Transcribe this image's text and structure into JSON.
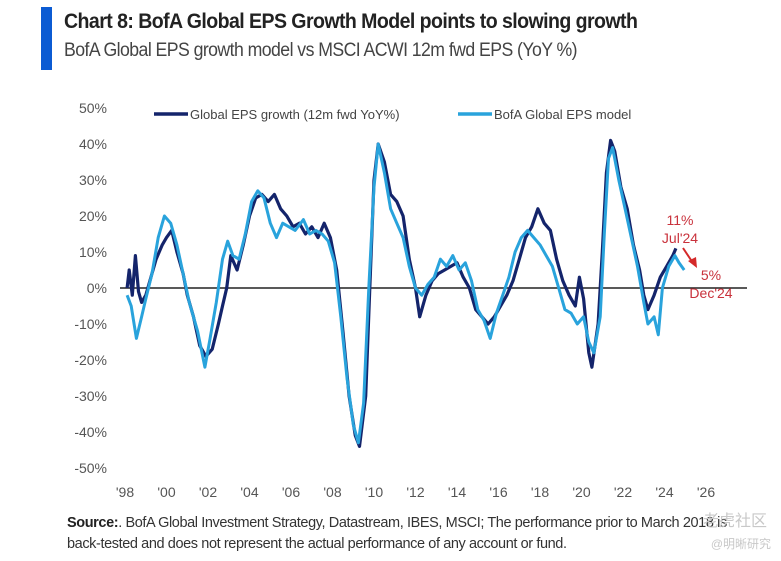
{
  "header": {
    "title": "Chart 8: BofA Global EPS Growth Model points to slowing growth",
    "subtitle": "BofA Global EPS growth model vs MSCI ACWI 12m fwd EPS (YoY %)"
  },
  "colors": {
    "accent": "#0b5bd3",
    "series_actual": "#14246b",
    "series_model": "#29a3dc",
    "annotation": "#c9323c",
    "zero_line": "#222222"
  },
  "footer": {
    "source_label": "Source:",
    "source_text": ". BofA Global Investment Strategy, Datastream, IBES, MSCI; The performance prior to March 2018 is back-tested and does not represent the actual performance of any account or fund.",
    "watermark_1": "老虎社区",
    "watermark_2": "@明晰研究"
  },
  "chart_data": {
    "type": "line",
    "title": "Chart 8: BofA Global EPS Growth Model points to slowing growth",
    "subtitle": "BofA Global EPS growth model vs MSCI ACWI 12m fwd EPS (YoY %)",
    "xlabel": "",
    "ylabel": "",
    "xlim": [
      1997.6,
      2026.6
    ],
    "ylim": [
      -50,
      50
    ],
    "x_ticks": [
      1998,
      2000,
      2002,
      2004,
      2006,
      2008,
      2010,
      2012,
      2014,
      2016,
      2018,
      2020,
      2022,
      2024,
      2026
    ],
    "x_tick_labels": [
      "'98",
      "'00",
      "'02",
      "'04",
      "'06",
      "'08",
      "'10",
      "'12",
      "'14",
      "'16",
      "'18",
      "'20",
      "'22",
      "'24",
      "'26"
    ],
    "y_ticks": [
      50,
      40,
      30,
      20,
      10,
      0,
      -10,
      -20,
      -30,
      -40,
      -50
    ],
    "y_tick_labels": [
      "50%",
      "40%",
      "30%",
      "20%",
      "10%",
      "0%",
      "-10%",
      "-20%",
      "-30%",
      "-40%",
      "-50%"
    ],
    "grid": false,
    "zero_line": true,
    "legend": {
      "placement": "top",
      "entries": [
        "Global EPS growth (12m fwd YoY%)",
        "BofA Global EPS model"
      ]
    },
    "series": [
      {
        "name": "Global EPS growth (12m fwd YoY%)",
        "color": "#14246b",
        "points": [
          [
            1998.1,
            0
          ],
          [
            1998.2,
            5
          ],
          [
            1998.35,
            -2
          ],
          [
            1998.5,
            9
          ],
          [
            1998.65,
            -1
          ],
          [
            1998.8,
            -4
          ],
          [
            1999.0,
            -2
          ],
          [
            1999.2,
            2
          ],
          [
            1999.5,
            8
          ],
          [
            1999.8,
            12
          ],
          [
            2000.0,
            14
          ],
          [
            2000.25,
            16
          ],
          [
            2000.5,
            10
          ],
          [
            2000.8,
            4
          ],
          [
            2001.0,
            -2
          ],
          [
            2001.3,
            -8
          ],
          [
            2001.6,
            -16
          ],
          [
            2001.9,
            -19
          ],
          [
            2002.2,
            -17
          ],
          [
            2002.5,
            -10
          ],
          [
            2002.7,
            -5
          ],
          [
            2002.9,
            0
          ],
          [
            2003.1,
            9
          ],
          [
            2003.4,
            5
          ],
          [
            2003.7,
            12
          ],
          [
            2004.0,
            20
          ],
          [
            2004.3,
            25
          ],
          [
            2004.6,
            26
          ],
          [
            2004.9,
            24
          ],
          [
            2005.2,
            26
          ],
          [
            2005.5,
            22
          ],
          [
            2005.8,
            20
          ],
          [
            2006.1,
            17
          ],
          [
            2006.4,
            18
          ],
          [
            2006.7,
            15
          ],
          [
            2007.0,
            17
          ],
          [
            2007.3,
            14
          ],
          [
            2007.6,
            18
          ],
          [
            2007.9,
            14
          ],
          [
            2008.2,
            5
          ],
          [
            2008.5,
            -12
          ],
          [
            2008.8,
            -30
          ],
          [
            2009.1,
            -41
          ],
          [
            2009.3,
            -44
          ],
          [
            2009.6,
            -30
          ],
          [
            2009.8,
            0
          ],
          [
            2010.0,
            30
          ],
          [
            2010.2,
            40
          ],
          [
            2010.5,
            35
          ],
          [
            2010.8,
            26
          ],
          [
            2011.1,
            24
          ],
          [
            2011.4,
            20
          ],
          [
            2011.7,
            8
          ],
          [
            2012.0,
            0
          ],
          [
            2012.2,
            -8
          ],
          [
            2012.5,
            -2
          ],
          [
            2012.8,
            2
          ],
          [
            2013.1,
            4
          ],
          [
            2013.4,
            5
          ],
          [
            2013.7,
            6
          ],
          [
            2014.0,
            7
          ],
          [
            2014.3,
            3
          ],
          [
            2014.6,
            0
          ],
          [
            2014.9,
            -6
          ],
          [
            2015.2,
            -8
          ],
          [
            2015.5,
            -10
          ],
          [
            2015.8,
            -8
          ],
          [
            2016.1,
            -5
          ],
          [
            2016.4,
            -2
          ],
          [
            2016.7,
            2
          ],
          [
            2017.0,
            8
          ],
          [
            2017.3,
            14
          ],
          [
            2017.6,
            17
          ],
          [
            2017.9,
            22
          ],
          [
            2018.2,
            18
          ],
          [
            2018.5,
            16
          ],
          [
            2018.8,
            8
          ],
          [
            2019.1,
            2
          ],
          [
            2019.4,
            -2
          ],
          [
            2019.7,
            -5
          ],
          [
            2019.9,
            3
          ],
          [
            2020.1,
            -3
          ],
          [
            2020.35,
            -18
          ],
          [
            2020.5,
            -22
          ],
          [
            2020.8,
            -10
          ],
          [
            2021.0,
            10
          ],
          [
            2021.2,
            32
          ],
          [
            2021.4,
            41
          ],
          [
            2021.6,
            38
          ],
          [
            2021.9,
            28
          ],
          [
            2022.2,
            22
          ],
          [
            2022.5,
            12
          ],
          [
            2022.8,
            5
          ],
          [
            2023.0,
            -2
          ],
          [
            2023.2,
            -6
          ],
          [
            2023.5,
            -2
          ],
          [
            2023.8,
            3
          ],
          [
            2024.1,
            6
          ],
          [
            2024.4,
            9
          ],
          [
            2024.55,
            11
          ]
        ]
      },
      {
        "name": "BofA Global EPS model",
        "color": "#29a3dc",
        "points": [
          [
            1998.1,
            -2
          ],
          [
            1998.3,
            -5
          ],
          [
            1998.55,
            -14
          ],
          [
            1998.8,
            -8
          ],
          [
            1999.0,
            -3
          ],
          [
            1999.3,
            4
          ],
          [
            1999.6,
            14
          ],
          [
            1999.9,
            20
          ],
          [
            2000.2,
            18
          ],
          [
            2000.5,
            12
          ],
          [
            2000.8,
            4
          ],
          [
            2001.1,
            -4
          ],
          [
            2001.5,
            -12
          ],
          [
            2001.85,
            -22
          ],
          [
            2002.1,
            -14
          ],
          [
            2002.4,
            -4
          ],
          [
            2002.7,
            8
          ],
          [
            2002.95,
            13
          ],
          [
            2003.2,
            9
          ],
          [
            2003.5,
            8
          ],
          [
            2003.8,
            15
          ],
          [
            2004.1,
            24
          ],
          [
            2004.4,
            27
          ],
          [
            2004.7,
            25
          ],
          [
            2005.0,
            18
          ],
          [
            2005.3,
            14
          ],
          [
            2005.6,
            18
          ],
          [
            2005.9,
            17
          ],
          [
            2006.2,
            16
          ],
          [
            2006.6,
            19
          ],
          [
            2006.9,
            15
          ],
          [
            2007.2,
            16
          ],
          [
            2007.5,
            15
          ],
          [
            2007.8,
            13
          ],
          [
            2008.1,
            7
          ],
          [
            2008.4,
            -8
          ],
          [
            2008.7,
            -25
          ],
          [
            2009.0,
            -38
          ],
          [
            2009.25,
            -43
          ],
          [
            2009.5,
            -32
          ],
          [
            2009.75,
            0
          ],
          [
            2010.0,
            28
          ],
          [
            2010.2,
            40
          ],
          [
            2010.5,
            32
          ],
          [
            2010.8,
            22
          ],
          [
            2011.1,
            18
          ],
          [
            2011.4,
            14
          ],
          [
            2011.7,
            6
          ],
          [
            2012.0,
            0
          ],
          [
            2012.3,
            -2
          ],
          [
            2012.6,
            1
          ],
          [
            2012.9,
            3
          ],
          [
            2013.2,
            8
          ],
          [
            2013.5,
            6
          ],
          [
            2013.8,
            9
          ],
          [
            2014.1,
            5
          ],
          [
            2014.4,
            7
          ],
          [
            2014.7,
            2
          ],
          [
            2015.0,
            -6
          ],
          [
            2015.3,
            -9
          ],
          [
            2015.6,
            -14
          ],
          [
            2015.9,
            -7
          ],
          [
            2016.2,
            -2
          ],
          [
            2016.5,
            3
          ],
          [
            2016.8,
            10
          ],
          [
            2017.1,
            14
          ],
          [
            2017.4,
            16
          ],
          [
            2017.7,
            14
          ],
          [
            2018.0,
            12
          ],
          [
            2018.3,
            9
          ],
          [
            2018.6,
            6
          ],
          [
            2018.9,
            0
          ],
          [
            2019.2,
            -6
          ],
          [
            2019.5,
            -7
          ],
          [
            2019.8,
            -10
          ],
          [
            2020.1,
            -8
          ],
          [
            2020.35,
            -15
          ],
          [
            2020.6,
            -18
          ],
          [
            2020.9,
            -8
          ],
          [
            2021.1,
            15
          ],
          [
            2021.3,
            36
          ],
          [
            2021.5,
            39
          ],
          [
            2021.8,
            30
          ],
          [
            2022.1,
            22
          ],
          [
            2022.4,
            14
          ],
          [
            2022.7,
            6
          ],
          [
            2023.0,
            -4
          ],
          [
            2023.2,
            -10
          ],
          [
            2023.5,
            -8
          ],
          [
            2023.7,
            -13
          ],
          [
            2023.9,
            0
          ],
          [
            2024.2,
            6
          ],
          [
            2024.5,
            9
          ],
          [
            2024.7,
            7
          ],
          [
            2024.95,
            5
          ]
        ]
      }
    ],
    "annotations": [
      {
        "text": "11%",
        "sub": "Jul'24",
        "x": 2024.55,
        "y": 11
      },
      {
        "text": "5%",
        "sub": "Dec'24",
        "x": 2024.95,
        "y": 5
      }
    ]
  }
}
